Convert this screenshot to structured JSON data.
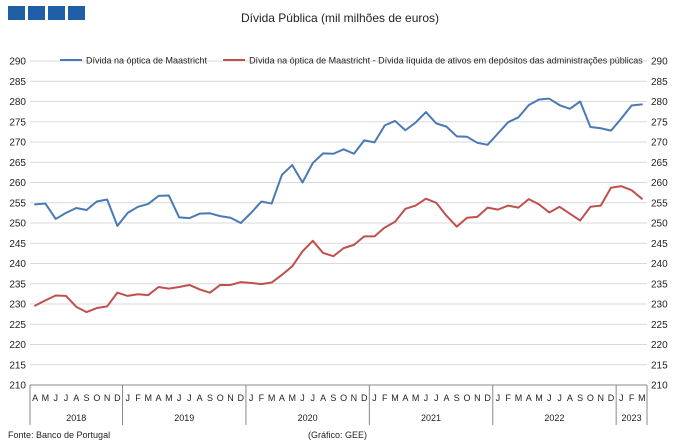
{
  "chart_data": {
    "type": "line",
    "title": "Dívida Pública (mil milhões de euros)",
    "source": "Fonte: Banco de Portugal",
    "credit": "(Gráfico: GEE)",
    "ylim": [
      210,
      290
    ],
    "yticks": [
      210,
      215,
      220,
      225,
      230,
      235,
      240,
      245,
      250,
      255,
      260,
      265,
      270,
      275,
      280,
      285,
      290
    ],
    "grid": true,
    "legend_position": "top",
    "month_labels": [
      "A",
      "M",
      "J",
      "J",
      "A",
      "S",
      "O",
      "N",
      "D",
      "J",
      "F",
      "M",
      "A",
      "M",
      "J",
      "J",
      "A",
      "S",
      "O",
      "N",
      "D",
      "J",
      "F",
      "M",
      "A",
      "M",
      "J",
      "J",
      "A",
      "S",
      "O",
      "N",
      "D",
      "J",
      "F",
      "M",
      "A",
      "M",
      "J",
      "J",
      "A",
      "S",
      "O",
      "N",
      "D",
      "J",
      "F",
      "M",
      "A",
      "M",
      "J",
      "J",
      "A",
      "S",
      "O",
      "N",
      "D",
      "J",
      "F",
      "M"
    ],
    "years": [
      {
        "label": "2018",
        "start": 0,
        "count": 9
      },
      {
        "label": "2019",
        "start": 9,
        "count": 12
      },
      {
        "label": "2020",
        "start": 21,
        "count": 12
      },
      {
        "label": "2021",
        "start": 33,
        "count": 12
      },
      {
        "label": "2022",
        "start": 45,
        "count": 12
      },
      {
        "label": "2023",
        "start": 57,
        "count": 3
      }
    ],
    "series": [
      {
        "name": "Dívida na óptica de Maastricht",
        "color": "#4a7ab5",
        "values": [
          254.6,
          254.8,
          251.0,
          252.5,
          253.7,
          253.2,
          255.3,
          255.8,
          249.3,
          252.5,
          254.0,
          254.7,
          256.7,
          256.8,
          251.4,
          251.2,
          252.3,
          252.4,
          251.7,
          251.3,
          250.0,
          252.5,
          255.3,
          254.8,
          261.9,
          264.3,
          260.0,
          264.8,
          267.2,
          267.1,
          268.2,
          267.1,
          270.4,
          269.9,
          274.1,
          275.2,
          272.9,
          274.8,
          277.4,
          274.6,
          273.8,
          271.4,
          271.3,
          269.8,
          269.3,
          272.1,
          274.9,
          276.1,
          279.1,
          280.5,
          280.7,
          279.1,
          278.2,
          280.0,
          273.7,
          273.4,
          272.8,
          275.8,
          279.0,
          279.3
        ]
      },
      {
        "name": "Dívida na óptica de Maastricht - Dívida líquida de ativos em depósitos das administrações públicas",
        "color": "#c0504d",
        "values": [
          229.6,
          230.9,
          232.1,
          232.0,
          229.3,
          228.0,
          229.0,
          229.4,
          232.8,
          232.0,
          232.4,
          232.2,
          234.2,
          233.8,
          234.2,
          234.7,
          233.6,
          232.8,
          234.7,
          234.7,
          235.4,
          235.2,
          234.9,
          235.3,
          237.2,
          239.3,
          243.0,
          245.6,
          242.6,
          241.8,
          243.8,
          244.6,
          246.7,
          246.7,
          248.9,
          250.3,
          253.5,
          254.3,
          256.0,
          255.0,
          251.8,
          249.1,
          251.3,
          251.5,
          253.8,
          253.3,
          254.3,
          253.8,
          255.9,
          254.6,
          252.6,
          254.0,
          252.3,
          250.6,
          254.0,
          254.3,
          258.7,
          259.1,
          258.1,
          256.0
        ]
      }
    ]
  }
}
